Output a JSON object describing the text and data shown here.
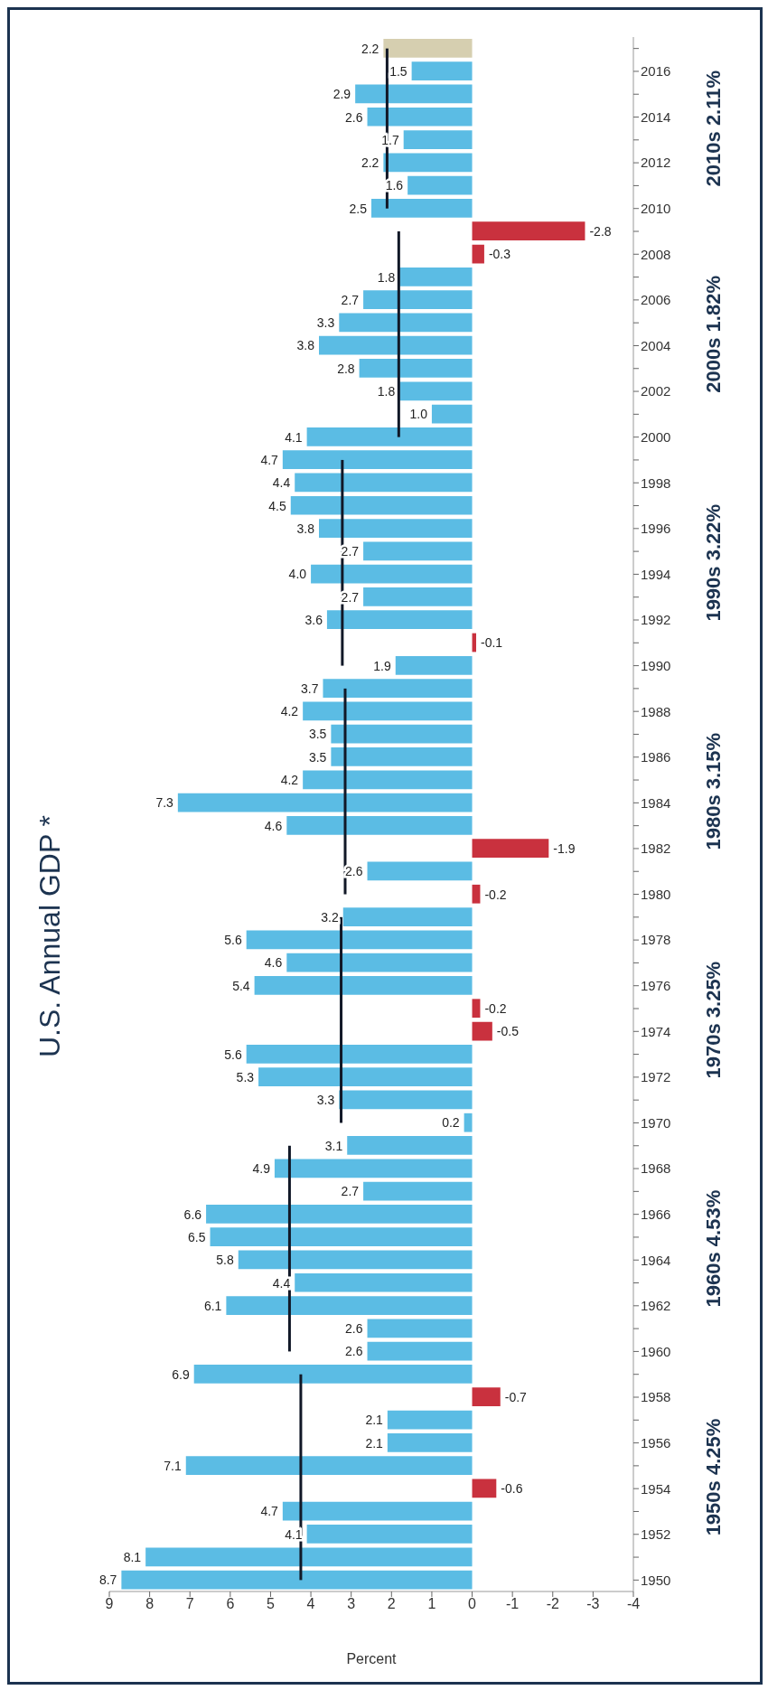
{
  "chart_data": {
    "type": "bar",
    "orientation": "horizontal",
    "title": "U.S.  Annual GDP *",
    "xlabel": "Percent",
    "categories": [
      null,
      "2016",
      null,
      "2014",
      null,
      "2012",
      null,
      "2010",
      null,
      "2008",
      null,
      "2006",
      null,
      "2004",
      null,
      "2002",
      null,
      "2000",
      null,
      "1998",
      null,
      "1996",
      null,
      "1994",
      null,
      "1992",
      null,
      "1990",
      null,
      "1988",
      null,
      "1986",
      null,
      "1984",
      null,
      "1982",
      null,
      "1980",
      null,
      "1978",
      null,
      "1976",
      null,
      "1974",
      null,
      "1972",
      null,
      "1970",
      null,
      "1968",
      null,
      "1966",
      null,
      "1964",
      null,
      "1962",
      null,
      "1960",
      null,
      "1958",
      null,
      "1956",
      null,
      "1954",
      null,
      "1952",
      null,
      "1950"
    ],
    "xlim": [
      9,
      -4
    ],
    "xticks": [
      9,
      8,
      7,
      6,
      5,
      4,
      3,
      2,
      1,
      0,
      -1,
      -2,
      -3,
      -4
    ],
    "series": [
      {
        "values": [
          2.2,
          1.5,
          2.9,
          2.6,
          1.7,
          2.2,
          1.6,
          2.5,
          -2.8,
          -0.3,
          1.8,
          2.7,
          3.3,
          3.8,
          2.8,
          1.8,
          1.0,
          4.1,
          4.7,
          4.4,
          4.5,
          3.8,
          2.7,
          4.0,
          2.7,
          3.6,
          -0.1,
          1.9,
          3.7,
          4.2,
          3.5,
          3.5,
          4.2,
          7.3,
          4.6,
          -1.9,
          2.6,
          -0.2,
          3.2,
          5.6,
          4.6,
          5.4,
          -0.2,
          -0.5,
          5.6,
          5.3,
          3.3,
          0.2,
          3.1,
          4.9,
          2.7,
          6.6,
          6.5,
          5.8,
          4.4,
          6.1,
          2.6,
          2.6,
          6.9,
          -0.7,
          2.1,
          2.1,
          7.1,
          -0.6,
          4.7,
          4.1,
          8.1,
          8.7
        ],
        "value_labels": [
          "2.2",
          "1.5",
          "2.9",
          "2.6",
          "1.7",
          "2.2",
          "1.6",
          "2.5",
          "-2.8",
          "-0.3",
          "1.8",
          "2.7",
          "3.3",
          "3.8",
          "2.8",
          "1.8",
          "1.0",
          "4.1",
          "4.7",
          "4.4",
          "4.5",
          "3.8",
          "2.7",
          "4.0",
          "2.7",
          "3.6",
          "-0.1",
          "1.9",
          "3.7",
          "4.2",
          "3.5",
          "3.5",
          "4.2",
          "7.3",
          "4.6",
          "-1.9",
          "2.6",
          "-0.2",
          "3.2",
          "5.6",
          "4.6",
          "5.4",
          "-0.2",
          "-0.5",
          "5.6",
          "5.3",
          "3.3",
          "0.2",
          "3.1",
          "4.9",
          "2.7",
          "6.6",
          "6.5",
          "5.8",
          "4.4",
          "6.1",
          "2.6",
          "2.6",
          "6.9",
          "-0.7",
          "2.1",
          "2.1",
          "7.1",
          "-0.6",
          "4.7",
          "4.1",
          "8.1",
          "8.7"
        ],
        "colors": [
          "#d6cfb0",
          "#5bbce4",
          "#5bbce4",
          "#5bbce4",
          "#5bbce4",
          "#5bbce4",
          "#5bbce4",
          "#5bbce4",
          "#c9313e",
          "#c9313e",
          "#5bbce4",
          "#5bbce4",
          "#5bbce4",
          "#5bbce4",
          "#5bbce4",
          "#5bbce4",
          "#5bbce4",
          "#5bbce4",
          "#5bbce4",
          "#5bbce4",
          "#5bbce4",
          "#5bbce4",
          "#5bbce4",
          "#5bbce4",
          "#5bbce4",
          "#5bbce4",
          "#c9313e",
          "#5bbce4",
          "#5bbce4",
          "#5bbce4",
          "#5bbce4",
          "#5bbce4",
          "#5bbce4",
          "#5bbce4",
          "#5bbce4",
          "#c9313e",
          "#5bbce4",
          "#c9313e",
          "#5bbce4",
          "#5bbce4",
          "#5bbce4",
          "#5bbce4",
          "#c9313e",
          "#c9313e",
          "#5bbce4",
          "#5bbce4",
          "#5bbce4",
          "#5bbce4",
          "#5bbce4",
          "#5bbce4",
          "#5bbce4",
          "#5bbce4",
          "#5bbce4",
          "#5bbce4",
          "#5bbce4",
          "#5bbce4",
          "#5bbce4",
          "#5bbce4",
          "#5bbce4",
          "#c9313e",
          "#5bbce4",
          "#5bbce4",
          "#5bbce4",
          "#c9313e",
          "#5bbce4",
          "#5bbce4",
          "#5bbce4",
          "#5bbce4"
        ]
      },
      {
        "type": "line",
        "color": "#111827",
        "values": [
          2.11,
          2.11,
          2.11,
          2.11,
          2.11,
          2.11,
          2.11,
          2.11,
          null,
          null,
          null,
          null,
          null,
          null,
          null,
          null,
          null,
          null,
          null,
          null,
          null,
          null,
          null,
          null,
          null,
          null,
          null,
          null,
          null,
          null,
          null,
          null,
          null,
          null,
          null,
          null,
          null,
          null,
          null,
          null,
          null,
          null,
          null,
          null,
          null,
          null,
          null,
          null,
          null,
          null,
          null,
          null,
          null,
          null,
          null,
          null,
          null,
          null,
          null,
          null,
          null,
          null,
          null,
          null,
          null,
          null,
          null,
          null
        ]
      },
      {
        "type": "line",
        "color": "#111827",
        "values": [
          null,
          null,
          null,
          null,
          null,
          null,
          null,
          null,
          1.82,
          1.82,
          1.82,
          1.82,
          1.82,
          1.82,
          1.82,
          1.82,
          1.82,
          1.82,
          null,
          null,
          null,
          null,
          null,
          null,
          null,
          null,
          null,
          null,
          null,
          null,
          null,
          null,
          null,
          null,
          null,
          null,
          null,
          null,
          null,
          null,
          null,
          null,
          null,
          null,
          null,
          null,
          null,
          null,
          null,
          null,
          null,
          null,
          null,
          null,
          null,
          null,
          null,
          null,
          null,
          null,
          null,
          null,
          null,
          null,
          null,
          null,
          null,
          null
        ]
      },
      {
        "type": "line",
        "color": "#111827",
        "values": [
          null,
          null,
          null,
          null,
          null,
          null,
          null,
          null,
          null,
          null,
          null,
          null,
          null,
          null,
          null,
          null,
          null,
          null,
          3.22,
          3.22,
          3.22,
          3.22,
          3.22,
          3.22,
          3.22,
          3.22,
          3.22,
          3.22,
          null,
          null,
          null,
          null,
          null,
          null,
          null,
          null,
          null,
          null,
          null,
          null,
          null,
          null,
          null,
          null,
          null,
          null,
          null,
          null,
          null,
          null,
          null,
          null,
          null,
          null,
          null,
          null,
          null,
          null,
          null,
          null,
          null,
          null,
          null,
          null,
          null,
          null,
          null,
          null
        ]
      },
      {
        "type": "line",
        "color": "#111827",
        "values": [
          null,
          null,
          null,
          null,
          null,
          null,
          null,
          null,
          null,
          null,
          null,
          null,
          null,
          null,
          null,
          null,
          null,
          null,
          null,
          null,
          null,
          null,
          null,
          null,
          null,
          null,
          null,
          null,
          3.15,
          3.15,
          3.15,
          3.15,
          3.15,
          3.15,
          3.15,
          3.15,
          3.15,
          3.15,
          null,
          null,
          null,
          null,
          null,
          null,
          null,
          null,
          null,
          null,
          null,
          null,
          null,
          null,
          null,
          null,
          null,
          null,
          null,
          null,
          null,
          null,
          null,
          null,
          null,
          null,
          null,
          null,
          null,
          null
        ]
      },
      {
        "type": "line",
        "color": "#111827",
        "values": [
          null,
          null,
          null,
          null,
          null,
          null,
          null,
          null,
          null,
          null,
          null,
          null,
          null,
          null,
          null,
          null,
          null,
          null,
          null,
          null,
          null,
          null,
          null,
          null,
          null,
          null,
          null,
          null,
          null,
          null,
          null,
          null,
          null,
          null,
          null,
          null,
          null,
          null,
          3.25,
          3.25,
          3.25,
          3.25,
          3.25,
          3.25,
          3.25,
          3.25,
          3.25,
          3.25,
          null,
          null,
          null,
          null,
          null,
          null,
          null,
          null,
          null,
          null,
          null,
          null,
          null,
          null,
          null,
          null,
          null,
          null,
          null,
          null
        ]
      },
      {
        "type": "line",
        "color": "#111827",
        "values": [
          null,
          null,
          null,
          null,
          null,
          null,
          null,
          null,
          null,
          null,
          null,
          null,
          null,
          null,
          null,
          null,
          null,
          null,
          null,
          null,
          null,
          null,
          null,
          null,
          null,
          null,
          null,
          null,
          null,
          null,
          null,
          null,
          null,
          null,
          null,
          null,
          null,
          null,
          null,
          null,
          null,
          null,
          null,
          null,
          null,
          null,
          null,
          null,
          4.53,
          4.53,
          4.53,
          4.53,
          4.53,
          4.53,
          4.53,
          4.53,
          4.53,
          4.53,
          null,
          null,
          null,
          null,
          null,
          null,
          null,
          null,
          null,
          null
        ]
      },
      {
        "type": "line",
        "color": "#111827",
        "values": [
          null,
          null,
          null,
          null,
          null,
          null,
          null,
          null,
          null,
          null,
          null,
          null,
          null,
          null,
          null,
          null,
          null,
          null,
          null,
          null,
          null,
          null,
          null,
          null,
          null,
          null,
          null,
          null,
          null,
          null,
          null,
          null,
          null,
          null,
          null,
          null,
          null,
          null,
          null,
          null,
          null,
          null,
          null,
          null,
          null,
          null,
          null,
          null,
          null,
          null,
          null,
          null,
          null,
          null,
          null,
          null,
          null,
          null,
          4.25,
          4.25,
          4.25,
          4.25,
          4.25,
          4.25,
          4.25,
          4.25,
          4.25,
          4.25
        ]
      }
    ],
    "annotations": [
      "2010s 2.11%",
      "2000s 1.82%",
      "1990s 3.22%",
      "1980s 3.15%",
      "1970s 3.25%",
      "1960s 4.53%",
      "1950s 4.25%"
    ]
  }
}
